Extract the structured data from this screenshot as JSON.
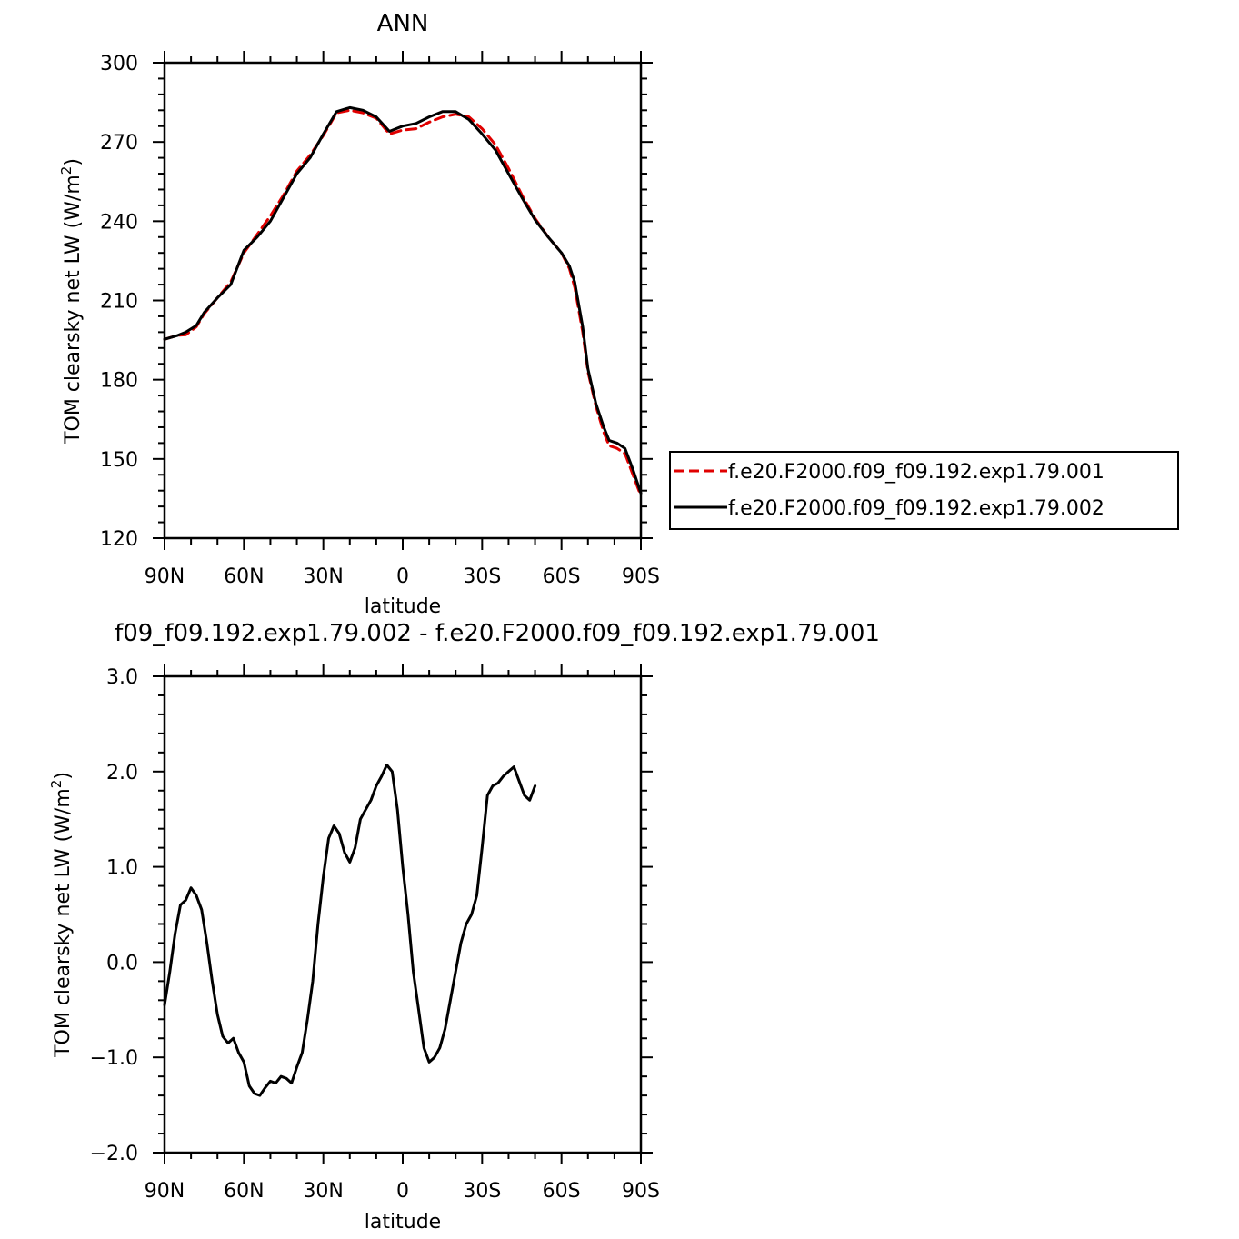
{
  "chart_data": [
    {
      "type": "line",
      "title": "ANN",
      "xlabel": "latitude",
      "ylabel": "TOM clearsky net LW (W/m²)",
      "ylabel_parts": [
        "TOM clearsky net LW (W/m",
        "2",
        ")"
      ],
      "xlim": [
        90,
        -90
      ],
      "ylim": [
        120,
        300
      ],
      "x_ticks": [
        90,
        60,
        30,
        0,
        -30,
        -60,
        -90
      ],
      "x_tick_labels": [
        "90N",
        "60N",
        "30N",
        "0",
        "30S",
        "60S",
        "90S"
      ],
      "y_ticks": [
        120,
        150,
        180,
        210,
        240,
        270,
        300
      ],
      "y_tick_labels": [
        "120",
        "150",
        "180",
        "210",
        "240",
        "270",
        "300"
      ],
      "legend": "right, outside plot",
      "series": [
        {
          "name": "f.e20.F2000.f09_f09.192.exp1.79.001",
          "color": "#e00000",
          "dash": "dashed",
          "points": [
            [
              90,
              195.3
            ],
            [
              85,
              196.8
            ],
            [
              82,
              197.0
            ],
            [
              78,
              200.0
            ],
            [
              75,
              205.0
            ],
            [
              70,
              211.0
            ],
            [
              65,
              217.0
            ],
            [
              60,
              228.0
            ],
            [
              55,
              235.0
            ],
            [
              50,
              242.0
            ],
            [
              45,
              250.0
            ],
            [
              40,
              259.0
            ],
            [
              35,
              265.0
            ],
            [
              30,
              272.5
            ],
            [
              25,
              281.0
            ],
            [
              20,
              282.0
            ],
            [
              15,
              281.0
            ],
            [
              10,
              279.0
            ],
            [
              5,
              273.0
            ],
            [
              0,
              274.5
            ],
            [
              -5,
              275.0
            ],
            [
              -10,
              277.5
            ],
            [
              -15,
              279.5
            ],
            [
              -20,
              280.5
            ],
            [
              -25,
              279.5
            ],
            [
              -30,
              275.0
            ],
            [
              -35,
              269.0
            ],
            [
              -40,
              260.0
            ],
            [
              -45,
              250.0
            ],
            [
              -50,
              241.0
            ],
            [
              -55,
              234.0
            ],
            [
              -60,
              228.0
            ],
            [
              -63,
              222.0
            ],
            [
              -65,
              215.0
            ],
            [
              -68,
              198.0
            ],
            [
              -70,
              183.0
            ],
            [
              -73,
              170.0
            ],
            [
              -76,
              160.0
            ],
            [
              -78,
              155.0
            ],
            [
              -81,
              154.0
            ],
            [
              -84,
              152.0
            ],
            [
              -87,
              144.0
            ],
            [
              -90,
              136.0
            ]
          ]
        },
        {
          "name": "f.e20.F2000.f09_f09.192.exp1.79.002",
          "color": "#000000",
          "dash": "solid",
          "points": [
            [
              90,
              195.3
            ],
            [
              85,
              196.8
            ],
            [
              82,
              198.0
            ],
            [
              78,
              200.5
            ],
            [
              75,
              205.5
            ],
            [
              70,
              211.0
            ],
            [
              65,
              216.0
            ],
            [
              60,
              229.0
            ],
            [
              55,
              234.0
            ],
            [
              50,
              240.0
            ],
            [
              45,
              249.0
            ],
            [
              40,
              258.0
            ],
            [
              35,
              264.0
            ],
            [
              30,
              273.0
            ],
            [
              25,
              281.5
            ],
            [
              20,
              283.0
            ],
            [
              15,
              282.0
            ],
            [
              10,
              279.5
            ],
            [
              5,
              274.0
            ],
            [
              0,
              276.0
            ],
            [
              -5,
              277.0
            ],
            [
              -10,
              279.5
            ],
            [
              -15,
              281.5
            ],
            [
              -20,
              281.5
            ],
            [
              -25,
              278.5
            ],
            [
              -30,
              273.0
            ],
            [
              -35,
              267.0
            ],
            [
              -40,
              258.0
            ],
            [
              -45,
              249.0
            ],
            [
              -50,
              240.5
            ],
            [
              -55,
              234.0
            ],
            [
              -60,
              228.0
            ],
            [
              -63,
              223.0
            ],
            [
              -65,
              217.0
            ],
            [
              -68,
              200.0
            ],
            [
              -70,
              184.0
            ],
            [
              -73,
              171.0
            ],
            [
              -76,
              162.0
            ],
            [
              -78,
              157.0
            ],
            [
              -81,
              156.0
            ],
            [
              -84,
              154.0
            ],
            [
              -87,
              146.0
            ],
            [
              -90,
              137.0
            ]
          ]
        }
      ]
    },
    {
      "type": "line",
      "title": "f09_f09.192.exp1.79.002 - f.e20.F2000.f09_f09.192.exp1.79.001",
      "xlabel": "latitude",
      "ylabel": "TOM clearsky net LW (W/m²)",
      "ylabel_parts": [
        "TOM clearsky net LW (W/m",
        "2",
        ")"
      ],
      "xlim": [
        90,
        -90
      ],
      "ylim": [
        -2.0,
        3.0
      ],
      "x_ticks": [
        90,
        60,
        30,
        0,
        -30,
        -60,
        -90
      ],
      "x_tick_labels": [
        "90N",
        "60N",
        "30N",
        "0",
        "30S",
        "60S",
        "90S"
      ],
      "y_ticks": [
        -2.0,
        -1.0,
        0.0,
        1.0,
        2.0,
        3.0
      ],
      "y_tick_labels": [
        "−2.0",
        "−1.0",
        "0.0",
        "1.0",
        "2.0",
        "3.0"
      ],
      "series": [
        {
          "color": "#000000",
          "dash": "solid",
          "points": [
            [
              90,
              -0.45
            ],
            [
              88,
              -0.1
            ],
            [
              86,
              0.3
            ],
            [
              84,
              0.6
            ],
            [
              82,
              0.65
            ],
            [
              80,
              0.78
            ],
            [
              78,
              0.7
            ],
            [
              76,
              0.55
            ],
            [
              74,
              0.2
            ],
            [
              72,
              -0.2
            ],
            [
              70,
              -0.55
            ],
            [
              68,
              -0.78
            ],
            [
              66,
              -0.85
            ],
            [
              64,
              -0.8
            ],
            [
              62,
              -0.95
            ],
            [
              60,
              -1.05
            ],
            [
              58,
              -1.3
            ],
            [
              56,
              -1.38
            ],
            [
              54,
              -1.4
            ],
            [
              52,
              -1.32
            ],
            [
              50,
              -1.25
            ],
            [
              48,
              -1.27
            ],
            [
              46,
              -1.2
            ],
            [
              44,
              -1.22
            ],
            [
              42,
              -1.27
            ],
            [
              40,
              -1.1
            ],
            [
              38,
              -0.95
            ],
            [
              36,
              -0.6
            ],
            [
              34,
              -0.2
            ],
            [
              32,
              0.4
            ],
            [
              30,
              0.9
            ],
            [
              28,
              1.3
            ],
            [
              26,
              1.43
            ],
            [
              24,
              1.35
            ],
            [
              22,
              1.15
            ],
            [
              20,
              1.05
            ],
            [
              18,
              1.2
            ],
            [
              16,
              1.5
            ],
            [
              14,
              1.6
            ],
            [
              12,
              1.7
            ],
            [
              10,
              1.85
            ],
            [
              8,
              1.95
            ],
            [
              6,
              2.07
            ],
            [
              4,
              2.0
            ],
            [
              2,
              1.6
            ],
            [
              0,
              1.0
            ],
            [
              -2,
              0.5
            ],
            [
              -4,
              -0.1
            ],
            [
              -6,
              -0.5
            ],
            [
              -8,
              -0.9
            ],
            [
              -10,
              -1.05
            ],
            [
              -12,
              -1.0
            ],
            [
              -14,
              -0.9
            ],
            [
              -16,
              -0.7
            ],
            [
              -18,
              -0.4
            ],
            [
              -20,
              -0.1
            ],
            [
              -22,
              0.2
            ],
            [
              -24,
              0.4
            ],
            [
              -26,
              0.5
            ],
            [
              -28,
              0.7
            ],
            [
              -30,
              1.2
            ],
            [
              -32,
              1.75
            ],
            [
              -34,
              1.85
            ],
            [
              -36,
              1.88
            ],
            [
              -38,
              1.95
            ],
            [
              -40,
              2.0
            ],
            [
              -42,
              2.05
            ],
            [
              -44,
              1.9
            ],
            [
              -46,
              1.75
            ],
            [
              -48,
              1.7
            ],
            [
              -50,
              1.85
            ]
          ]
        }
      ]
    }
  ]
}
